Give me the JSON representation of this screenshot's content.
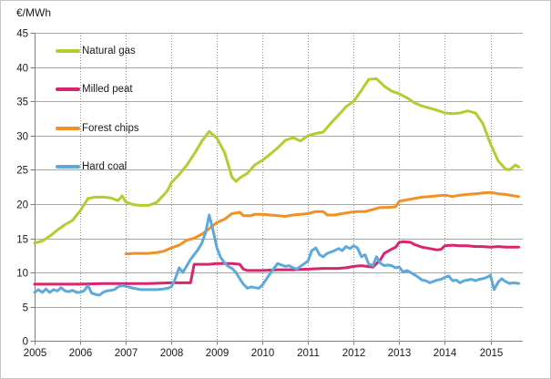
{
  "unit_label": "€/MWh",
  "chart_data": {
    "type": "line",
    "title": "€/MWh",
    "ylabel": "€/MWh",
    "xlabel": "",
    "legend_position": "top-left-inside",
    "grid": {
      "horizontal": "solid",
      "vertical": "dotted"
    },
    "x_axis": {
      "min": 2005,
      "max": 2015.72,
      "tick_labels": [
        2005,
        2006,
        2007,
        2008,
        2009,
        2010,
        2011,
        2012,
        2013,
        2014,
        2015
      ]
    },
    "y_axis": {
      "min": 0,
      "max": 45,
      "step": 5,
      "tick_labels": [
        0,
        5,
        10,
        15,
        20,
        25,
        30,
        35,
        40,
        45
      ]
    },
    "series": [
      {
        "name": "Natural gas",
        "color": "#b4cc2f",
        "points": [
          [
            2005.0,
            14.3
          ],
          [
            2005.17,
            14.6
          ],
          [
            2005.33,
            15.3
          ],
          [
            2005.5,
            16.2
          ],
          [
            2005.67,
            17.0
          ],
          [
            2005.83,
            17.6
          ],
          [
            2006.0,
            19.0
          ],
          [
            2006.17,
            20.8
          ],
          [
            2006.33,
            21.0
          ],
          [
            2006.5,
            21.0
          ],
          [
            2006.67,
            20.9
          ],
          [
            2006.83,
            20.5
          ],
          [
            2006.92,
            21.2
          ],
          [
            2007.0,
            20.3
          ],
          [
            2007.17,
            19.9
          ],
          [
            2007.33,
            19.8
          ],
          [
            2007.5,
            19.8
          ],
          [
            2007.67,
            20.2
          ],
          [
            2007.83,
            21.3
          ],
          [
            2007.92,
            22.0
          ],
          [
            2008.0,
            23.1
          ],
          [
            2008.17,
            24.3
          ],
          [
            2008.33,
            25.6
          ],
          [
            2008.5,
            27.3
          ],
          [
            2008.67,
            29.2
          ],
          [
            2008.83,
            30.6
          ],
          [
            2009.0,
            29.6
          ],
          [
            2009.17,
            27.5
          ],
          [
            2009.33,
            23.9
          ],
          [
            2009.42,
            23.3
          ],
          [
            2009.5,
            23.8
          ],
          [
            2009.67,
            24.5
          ],
          [
            2009.83,
            25.7
          ],
          [
            2010.0,
            26.4
          ],
          [
            2010.17,
            27.3
          ],
          [
            2010.33,
            28.2
          ],
          [
            2010.5,
            29.3
          ],
          [
            2010.67,
            29.7
          ],
          [
            2010.83,
            29.2
          ],
          [
            2011.0,
            30.0
          ],
          [
            2011.17,
            30.3
          ],
          [
            2011.33,
            30.5
          ],
          [
            2011.5,
            31.8
          ],
          [
            2011.67,
            33.0
          ],
          [
            2011.83,
            34.2
          ],
          [
            2012.0,
            35.0
          ],
          [
            2012.17,
            36.6
          ],
          [
            2012.33,
            38.2
          ],
          [
            2012.5,
            38.3
          ],
          [
            2012.67,
            37.2
          ],
          [
            2012.83,
            36.5
          ],
          [
            2013.0,
            36.1
          ],
          [
            2013.17,
            35.5
          ],
          [
            2013.33,
            34.8
          ],
          [
            2013.5,
            34.3
          ],
          [
            2013.67,
            34.0
          ],
          [
            2013.83,
            33.7
          ],
          [
            2014.0,
            33.3
          ],
          [
            2014.17,
            33.2
          ],
          [
            2014.33,
            33.3
          ],
          [
            2014.5,
            33.6
          ],
          [
            2014.67,
            33.3
          ],
          [
            2014.83,
            31.8
          ],
          [
            2015.0,
            28.8
          ],
          [
            2015.17,
            26.3
          ],
          [
            2015.33,
            25.1
          ],
          [
            2015.42,
            25.0
          ],
          [
            2015.55,
            25.7
          ],
          [
            2015.62,
            25.4
          ]
        ]
      },
      {
        "name": "Milled peat",
        "color": "#d9246e",
        "points": [
          [
            2005.0,
            8.3
          ],
          [
            2005.5,
            8.3
          ],
          [
            2006.0,
            8.3
          ],
          [
            2006.5,
            8.4
          ],
          [
            2007.0,
            8.4
          ],
          [
            2007.5,
            8.4
          ],
          [
            2008.0,
            8.5
          ],
          [
            2008.33,
            8.5
          ],
          [
            2008.42,
            8.5
          ],
          [
            2008.5,
            11.2
          ],
          [
            2008.67,
            11.2
          ],
          [
            2008.83,
            11.2
          ],
          [
            2009.0,
            11.3
          ],
          [
            2009.17,
            11.3
          ],
          [
            2009.33,
            11.3
          ],
          [
            2009.5,
            11.2
          ],
          [
            2009.58,
            10.5
          ],
          [
            2009.67,
            10.3
          ],
          [
            2009.83,
            10.3
          ],
          [
            2010.0,
            10.3
          ],
          [
            2010.33,
            10.4
          ],
          [
            2010.67,
            10.4
          ],
          [
            2011.0,
            10.5
          ],
          [
            2011.33,
            10.6
          ],
          [
            2011.67,
            10.6
          ],
          [
            2011.83,
            10.7
          ],
          [
            2012.0,
            10.9
          ],
          [
            2012.17,
            11.0
          ],
          [
            2012.42,
            10.8
          ],
          [
            2012.58,
            11.8
          ],
          [
            2012.67,
            12.8
          ],
          [
            2012.83,
            13.4
          ],
          [
            2012.92,
            13.7
          ],
          [
            2013.0,
            14.4
          ],
          [
            2013.08,
            14.5
          ],
          [
            2013.25,
            14.4
          ],
          [
            2013.33,
            14.1
          ],
          [
            2013.5,
            13.7
          ],
          [
            2013.67,
            13.5
          ],
          [
            2013.83,
            13.3
          ],
          [
            2013.92,
            13.4
          ],
          [
            2014.0,
            13.9
          ],
          [
            2014.17,
            14.0
          ],
          [
            2014.33,
            13.9
          ],
          [
            2014.5,
            13.9
          ],
          [
            2014.67,
            13.8
          ],
          [
            2014.83,
            13.8
          ],
          [
            2015.0,
            13.7
          ],
          [
            2015.17,
            13.8
          ],
          [
            2015.33,
            13.7
          ],
          [
            2015.5,
            13.7
          ],
          [
            2015.62,
            13.7
          ]
        ]
      },
      {
        "name": "Forest chips",
        "color": "#f29123",
        "points": [
          [
            2007.0,
            12.7
          ],
          [
            2007.17,
            12.8
          ],
          [
            2007.33,
            12.8
          ],
          [
            2007.5,
            12.8
          ],
          [
            2007.67,
            12.9
          ],
          [
            2007.83,
            13.1
          ],
          [
            2008.0,
            13.6
          ],
          [
            2008.17,
            14.0
          ],
          [
            2008.33,
            14.7
          ],
          [
            2008.5,
            15.0
          ],
          [
            2008.67,
            15.6
          ],
          [
            2008.83,
            16.4
          ],
          [
            2009.0,
            17.3
          ],
          [
            2009.17,
            17.8
          ],
          [
            2009.33,
            18.6
          ],
          [
            2009.5,
            18.8
          ],
          [
            2009.58,
            18.3
          ],
          [
            2009.75,
            18.3
          ],
          [
            2009.83,
            18.5
          ],
          [
            2010.0,
            18.5
          ],
          [
            2010.17,
            18.4
          ],
          [
            2010.33,
            18.3
          ],
          [
            2010.5,
            18.2
          ],
          [
            2010.67,
            18.4
          ],
          [
            2010.83,
            18.5
          ],
          [
            2011.0,
            18.6
          ],
          [
            2011.17,
            18.9
          ],
          [
            2011.33,
            18.9
          ],
          [
            2011.42,
            18.4
          ],
          [
            2011.58,
            18.4
          ],
          [
            2011.75,
            18.6
          ],
          [
            2011.92,
            18.8
          ],
          [
            2012.08,
            18.9
          ],
          [
            2012.25,
            18.9
          ],
          [
            2012.42,
            19.2
          ],
          [
            2012.58,
            19.5
          ],
          [
            2012.75,
            19.5
          ],
          [
            2012.92,
            19.6
          ],
          [
            2013.0,
            20.4
          ],
          [
            2013.17,
            20.6
          ],
          [
            2013.33,
            20.8
          ],
          [
            2013.5,
            21.0
          ],
          [
            2013.67,
            21.1
          ],
          [
            2013.83,
            21.2
          ],
          [
            2014.0,
            21.3
          ],
          [
            2014.17,
            21.1
          ],
          [
            2014.33,
            21.3
          ],
          [
            2014.5,
            21.4
          ],
          [
            2014.67,
            21.5
          ],
          [
            2014.83,
            21.6
          ],
          [
            2015.0,
            21.7
          ],
          [
            2015.17,
            21.5
          ],
          [
            2015.33,
            21.4
          ],
          [
            2015.5,
            21.2
          ],
          [
            2015.62,
            21.1
          ]
        ]
      },
      {
        "name": "Hard coal",
        "color": "#5ea9d9",
        "points": [
          [
            2005.0,
            7.1
          ],
          [
            2005.08,
            7.5
          ],
          [
            2005.17,
            7.1
          ],
          [
            2005.25,
            7.6
          ],
          [
            2005.33,
            7.1
          ],
          [
            2005.42,
            7.5
          ],
          [
            2005.5,
            7.3
          ],
          [
            2005.58,
            7.8
          ],
          [
            2005.67,
            7.3
          ],
          [
            2005.75,
            7.2
          ],
          [
            2005.83,
            7.4
          ],
          [
            2005.92,
            7.1
          ],
          [
            2006.0,
            7.1
          ],
          [
            2006.08,
            7.3
          ],
          [
            2006.17,
            8.1
          ],
          [
            2006.25,
            7.0
          ],
          [
            2006.33,
            6.8
          ],
          [
            2006.42,
            6.7
          ],
          [
            2006.5,
            7.1
          ],
          [
            2006.58,
            7.3
          ],
          [
            2006.67,
            7.4
          ],
          [
            2006.75,
            7.5
          ],
          [
            2006.83,
            7.9
          ],
          [
            2006.92,
            8.1
          ],
          [
            2007.0,
            8.0
          ],
          [
            2007.17,
            7.7
          ],
          [
            2007.33,
            7.5
          ],
          [
            2007.5,
            7.5
          ],
          [
            2007.67,
            7.5
          ],
          [
            2007.83,
            7.6
          ],
          [
            2007.92,
            7.7
          ],
          [
            2008.0,
            7.9
          ],
          [
            2008.08,
            9.0
          ],
          [
            2008.17,
            10.7
          ],
          [
            2008.25,
            10.0
          ],
          [
            2008.33,
            10.9
          ],
          [
            2008.42,
            11.9
          ],
          [
            2008.5,
            12.6
          ],
          [
            2008.58,
            13.3
          ],
          [
            2008.67,
            14.3
          ],
          [
            2008.75,
            15.8
          ],
          [
            2008.83,
            18.4
          ],
          [
            2008.92,
            16.0
          ],
          [
            2009.0,
            13.6
          ],
          [
            2009.08,
            12.2
          ],
          [
            2009.17,
            11.4
          ],
          [
            2009.25,
            10.9
          ],
          [
            2009.33,
            10.6
          ],
          [
            2009.42,
            10.0
          ],
          [
            2009.5,
            9.1
          ],
          [
            2009.58,
            8.3
          ],
          [
            2009.67,
            7.7
          ],
          [
            2009.75,
            7.9
          ],
          [
            2009.83,
            7.8
          ],
          [
            2009.92,
            7.7
          ],
          [
            2010.0,
            8.2
          ],
          [
            2010.08,
            9.0
          ],
          [
            2010.17,
            9.9
          ],
          [
            2010.33,
            11.3
          ],
          [
            2010.42,
            11.1
          ],
          [
            2010.5,
            10.9
          ],
          [
            2010.58,
            11.0
          ],
          [
            2010.67,
            10.7
          ],
          [
            2010.75,
            10.5
          ],
          [
            2010.83,
            10.9
          ],
          [
            2010.92,
            11.3
          ],
          [
            2011.0,
            11.7
          ],
          [
            2011.08,
            13.2
          ],
          [
            2011.17,
            13.6
          ],
          [
            2011.25,
            12.6
          ],
          [
            2011.33,
            12.3
          ],
          [
            2011.42,
            12.8
          ],
          [
            2011.5,
            13.0
          ],
          [
            2011.58,
            13.2
          ],
          [
            2011.67,
            13.5
          ],
          [
            2011.75,
            13.2
          ],
          [
            2011.83,
            13.8
          ],
          [
            2011.92,
            13.5
          ],
          [
            2012.0,
            13.9
          ],
          [
            2012.08,
            13.6
          ],
          [
            2012.17,
            12.3
          ],
          [
            2012.25,
            12.6
          ],
          [
            2012.33,
            11.2
          ],
          [
            2012.42,
            11.0
          ],
          [
            2012.5,
            12.3
          ],
          [
            2012.58,
            11.4
          ],
          [
            2012.67,
            11.0
          ],
          [
            2012.75,
            11.1
          ],
          [
            2012.83,
            11.0
          ],
          [
            2012.92,
            10.7
          ],
          [
            2013.0,
            10.8
          ],
          [
            2013.08,
            10.1
          ],
          [
            2013.17,
            10.3
          ],
          [
            2013.33,
            9.7
          ],
          [
            2013.42,
            9.3
          ],
          [
            2013.5,
            8.9
          ],
          [
            2013.58,
            8.8
          ],
          [
            2013.67,
            8.5
          ],
          [
            2013.75,
            8.7
          ],
          [
            2013.83,
            8.9
          ],
          [
            2013.92,
            9.0
          ],
          [
            2014.0,
            9.3
          ],
          [
            2014.08,
            9.5
          ],
          [
            2014.17,
            8.8
          ],
          [
            2014.25,
            8.9
          ],
          [
            2014.33,
            8.5
          ],
          [
            2014.42,
            8.8
          ],
          [
            2014.5,
            8.9
          ],
          [
            2014.58,
            9.0
          ],
          [
            2014.67,
            8.8
          ],
          [
            2014.75,
            9.0
          ],
          [
            2014.83,
            9.1
          ],
          [
            2014.92,
            9.3
          ],
          [
            2015.0,
            9.6
          ],
          [
            2015.08,
            7.5
          ],
          [
            2015.17,
            8.6
          ],
          [
            2015.25,
            9.1
          ],
          [
            2015.33,
            8.7
          ],
          [
            2015.42,
            8.4
          ],
          [
            2015.5,
            8.5
          ],
          [
            2015.62,
            8.4
          ]
        ]
      }
    ]
  }
}
